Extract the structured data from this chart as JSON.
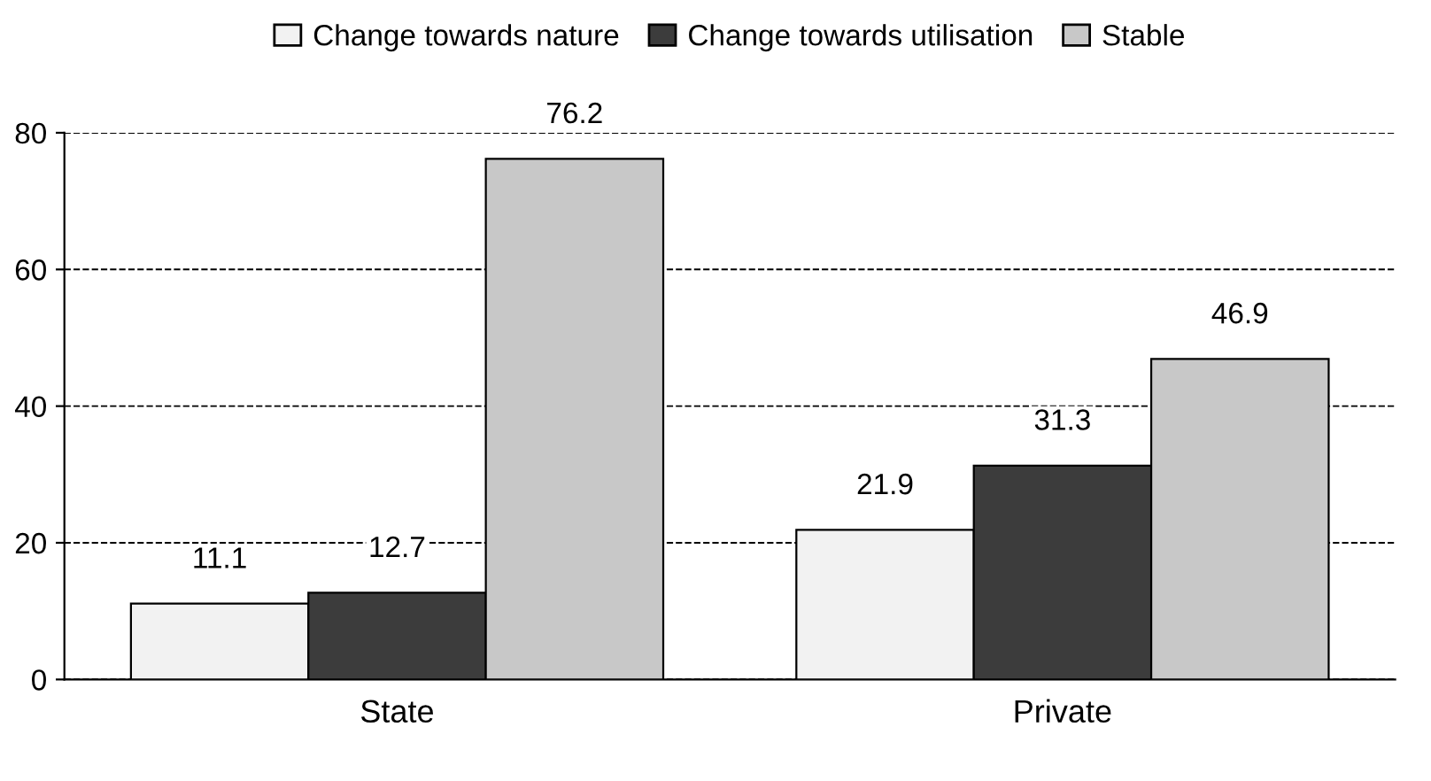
{
  "chart_data": {
    "type": "bar",
    "categories": [
      "State",
      "Private"
    ],
    "series": [
      {
        "name": "Change towards nature",
        "color": "#f2f2f2",
        "values": [
          11.1,
          21.9
        ]
      },
      {
        "name": "Change towards utilisation",
        "color": "#3c3c3c",
        "values": [
          12.7,
          31.3
        ]
      },
      {
        "name": "Stable",
        "color": "#c8c8c8",
        "values": [
          76.2,
          46.9
        ]
      }
    ],
    "ylim": [
      0,
      80
    ],
    "yticks": [
      0,
      20,
      40,
      60,
      80
    ],
    "grid": "y",
    "legend": "top",
    "data_labels": true
  }
}
